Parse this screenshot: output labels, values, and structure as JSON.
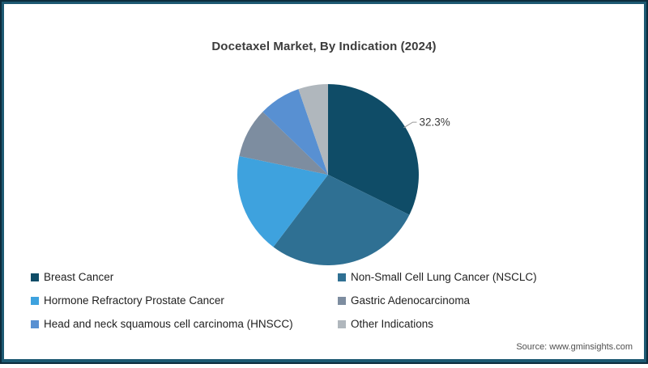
{
  "chart_data": {
    "type": "pie",
    "title": "Docetaxel Market, By Indication (2024)",
    "direction": "clockwise",
    "start_angle_deg": 0,
    "legend_position": "bottom",
    "slices": [
      {
        "label": "Breast Cancer",
        "value": 32.3,
        "color": "#0F4C67",
        "data_label": "32.3%"
      },
      {
        "label": "Non-Small Cell Lung Cancer (NSCLC)",
        "value": 28.0,
        "color": "#2F7093",
        "data_label": ""
      },
      {
        "label": "Hormone Refractory Prostate Cancer",
        "value": 18.0,
        "color": "#3EA2DE",
        "data_label": ""
      },
      {
        "label": "Gastric Adenocarcinoma",
        "value": 8.9,
        "color": "#7D8DA0",
        "data_label": ""
      },
      {
        "label": "Head and neck squamous cell carcinoma (HNSCC)",
        "value": 7.5,
        "color": "#5890D2",
        "data_label": ""
      },
      {
        "label": "Other Indications",
        "value": 5.3,
        "color": "#B0B7BD",
        "data_label": ""
      }
    ]
  },
  "source": {
    "text": "Source: www.gminsights.com"
  }
}
